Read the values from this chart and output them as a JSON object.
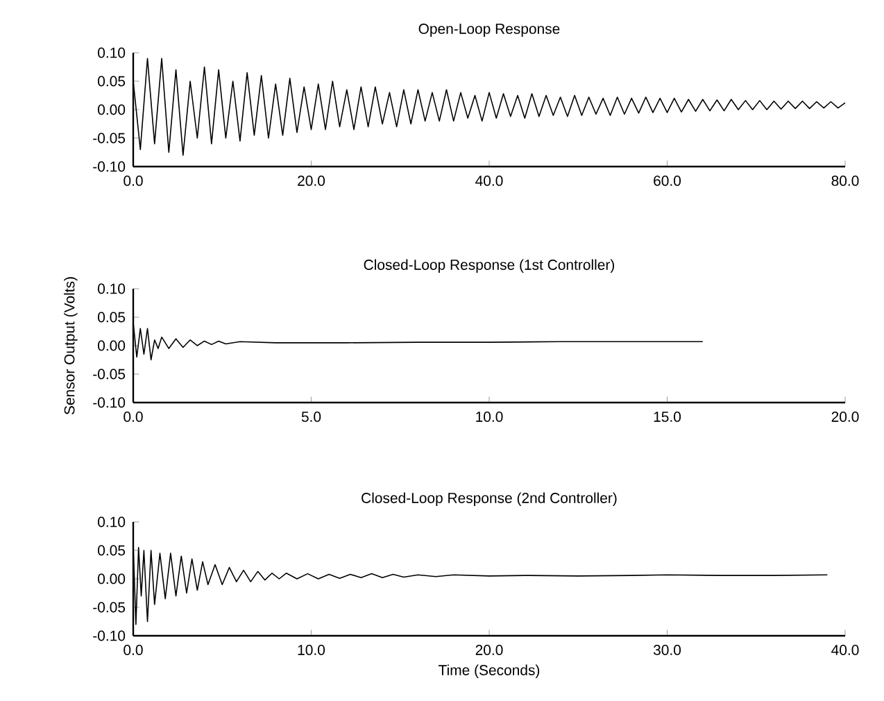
{
  "chart_data": [
    {
      "type": "line",
      "title": "Open-Loop Response",
      "x": [
        0,
        0.8,
        1.6,
        2.4,
        3.2,
        4.0,
        4.8,
        5.6,
        6.4,
        7.2,
        8.0,
        8.8,
        9.6,
        10.4,
        11.2,
        12.0,
        12.8,
        13.6,
        14.4,
        15.2,
        16.0,
        16.8,
        17.6,
        18.4,
        19.2,
        20.0,
        20.8,
        21.6,
        22.4,
        23.2,
        24.0,
        24.8,
        25.6,
        26.4,
        27.2,
        28.0,
        28.8,
        29.6,
        30.4,
        31.2,
        32.0,
        32.8,
        33.6,
        34.4,
        35.2,
        36.0,
        36.8,
        37.6,
        38.4,
        39.2,
        40.0,
        40.8,
        41.6,
        42.4,
        43.2,
        44.0,
        44.8,
        45.6,
        46.4,
        47.2,
        48.0,
        48.8,
        49.6,
        50.4,
        51.2,
        52.0,
        52.8,
        53.6,
        54.4,
        55.2,
        56.0,
        56.8,
        57.6,
        58.4,
        59.2,
        60.0,
        60.8,
        61.6,
        62.4,
        63.2,
        64.0,
        64.8,
        65.6,
        66.4,
        67.2,
        68.0,
        68.8,
        69.6,
        70.4,
        71.2,
        72.0,
        72.8,
        73.6,
        74.4,
        75.2,
        76.0,
        76.8,
        77.6,
        78.4,
        79.2,
        80.0
      ],
      "series": [
        {
          "color": "#000000",
          "values": [
            0.05,
            -0.07,
            0.09,
            -0.06,
            0.09,
            -0.075,
            0.07,
            -0.08,
            0.05,
            -0.05,
            0.075,
            -0.06,
            0.07,
            -0.05,
            0.05,
            -0.055,
            0.065,
            -0.045,
            0.06,
            -0.05,
            0.045,
            -0.045,
            0.055,
            -0.04,
            0.04,
            -0.035,
            0.045,
            -0.035,
            0.05,
            -0.03,
            0.035,
            -0.035,
            0.04,
            -0.03,
            0.04,
            -0.025,
            0.03,
            -0.03,
            0.035,
            -0.025,
            0.035,
            -0.02,
            0.03,
            -0.02,
            0.035,
            -0.02,
            0.03,
            -0.015,
            0.025,
            -0.02,
            0.03,
            -0.015,
            0.028,
            -0.012,
            0.025,
            -0.015,
            0.028,
            -0.012,
            0.025,
            -0.01,
            0.022,
            -0.012,
            0.025,
            -0.01,
            0.022,
            -0.008,
            0.02,
            -0.01,
            0.022,
            -0.008,
            0.02,
            -0.006,
            0.022,
            -0.005,
            0.02,
            -0.005,
            0.02,
            -0.004,
            0.018,
            -0.003,
            0.018,
            -0.002,
            0.017,
            -0.002,
            0.018,
            0.0,
            0.016,
            0.0,
            0.016,
            0.0,
            0.015,
            0.001,
            0.015,
            0.002,
            0.015,
            0.002,
            0.014,
            0.003,
            0.014,
            0.003,
            0.012
          ]
        }
      ],
      "xlim": [
        0,
        80
      ],
      "ylim": [
        -0.1,
        0.1
      ],
      "xticks": [
        {
          "value": 0,
          "label": "0.0"
        },
        {
          "value": 20,
          "label": "20.0"
        },
        {
          "value": 40,
          "label": "40.0"
        },
        {
          "value": 60,
          "label": "60.0"
        },
        {
          "value": 80,
          "label": "80.0"
        }
      ],
      "yticks": [
        {
          "value": -0.1,
          "label": "-0.10"
        },
        {
          "value": -0.05,
          "label": "-0.05"
        },
        {
          "value": 0,
          "label": "0.00"
        },
        {
          "value": 0.05,
          "label": "0.05"
        },
        {
          "value": 0.1,
          "label": "0.10"
        }
      ],
      "grid": false
    },
    {
      "type": "line",
      "title": "Closed-Loop Response (1st Controller)",
      "ylabel": "Sensor Output (Volts)",
      "x": [
        0,
        0.1,
        0.2,
        0.3,
        0.4,
        0.5,
        0.6,
        0.7,
        0.8,
        1.0,
        1.2,
        1.4,
        1.6,
        1.8,
        2.0,
        2.2,
        2.4,
        2.6,
        3,
        4,
        6,
        8,
        10,
        12,
        14,
        16
      ],
      "series": [
        {
          "color": "#000000",
          "values": [
            0.04,
            -0.02,
            0.03,
            -0.015,
            0.03,
            -0.025,
            0.01,
            -0.005,
            0.015,
            -0.005,
            0.012,
            -0.003,
            0.01,
            0.0,
            0.008,
            0.002,
            0.008,
            0.003,
            0.007,
            0.005,
            0.005,
            0.006,
            0.006,
            0.007,
            0.007,
            0.007
          ]
        }
      ],
      "xlim": [
        0,
        20
      ],
      "ylim": [
        -0.1,
        0.1
      ],
      "xticks": [
        {
          "value": 0,
          "label": "0.0"
        },
        {
          "value": 5,
          "label": "5.0"
        },
        {
          "value": 10,
          "label": "10.0"
        },
        {
          "value": 15,
          "label": "15.0"
        },
        {
          "value": 20,
          "label": "20.0"
        }
      ],
      "yticks": [
        {
          "value": -0.1,
          "label": "-0.10"
        },
        {
          "value": -0.05,
          "label": "-0.05"
        },
        {
          "value": 0,
          "label": "0.00"
        },
        {
          "value": 0.05,
          "label": "0.05"
        },
        {
          "value": 0.1,
          "label": "0.10"
        }
      ],
      "grid": false
    },
    {
      "type": "line",
      "title": "Closed-Loop Response (2nd Controller)",
      "xlabel": "Time (Seconds)",
      "x": [
        0,
        0.15,
        0.3,
        0.45,
        0.6,
        0.8,
        1.0,
        1.2,
        1.5,
        1.8,
        2.1,
        2.4,
        2.7,
        3.0,
        3.3,
        3.6,
        3.9,
        4.2,
        4.6,
        5.0,
        5.4,
        5.8,
        6.2,
        6.6,
        7.0,
        7.4,
        7.8,
        8.2,
        8.6,
        9.2,
        9.8,
        10.4,
        11,
        11.6,
        12.2,
        12.8,
        13.4,
        14,
        14.6,
        15.2,
        16,
        17,
        18,
        20,
        22,
        25,
        28,
        30,
        33,
        36,
        39
      ],
      "series": [
        {
          "color": "#000000",
          "values": [
            0.06,
            -0.08,
            0.055,
            -0.03,
            0.05,
            -0.075,
            0.05,
            -0.045,
            0.045,
            -0.035,
            0.045,
            -0.03,
            0.04,
            -0.025,
            0.035,
            -0.02,
            0.03,
            -0.01,
            0.025,
            -0.01,
            0.02,
            -0.005,
            0.015,
            -0.005,
            0.013,
            -0.002,
            0.01,
            0.0,
            0.01,
            0.0,
            0.009,
            0.0,
            0.008,
            0.001,
            0.008,
            0.002,
            0.009,
            0.002,
            0.008,
            0.003,
            0.007,
            0.004,
            0.007,
            0.005,
            0.006,
            0.005,
            0.006,
            0.007,
            0.006,
            0.006,
            0.007
          ]
        }
      ],
      "xlim": [
        0,
        40
      ],
      "ylim": [
        -0.1,
        0.1
      ],
      "xticks": [
        {
          "value": 0,
          "label": "0.0"
        },
        {
          "value": 10,
          "label": "10.0"
        },
        {
          "value": 20,
          "label": "20.0"
        },
        {
          "value": 30,
          "label": "30.0"
        },
        {
          "value": 40,
          "label": "40.0"
        }
      ],
      "yticks": [
        {
          "value": -0.1,
          "label": "-0.10"
        },
        {
          "value": -0.05,
          "label": "-0.05"
        },
        {
          "value": 0,
          "label": "0.00"
        },
        {
          "value": 0.05,
          "label": "0.05"
        },
        {
          "value": 0.1,
          "label": "0.10"
        }
      ],
      "grid": false
    }
  ]
}
